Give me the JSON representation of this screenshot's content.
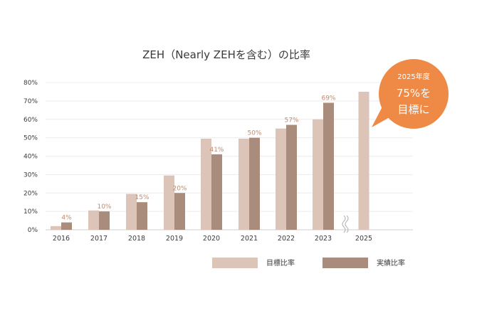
{
  "chart_data": {
    "type": "bar",
    "title": "ZEH（Nearly ZEHを含む）の比率",
    "categories": [
      "2016",
      "2017",
      "2018",
      "2019",
      "2020",
      "2021",
      "2022",
      "2023",
      "2025"
    ],
    "y_tick_labels": [
      "0%",
      "10%",
      "20%",
      "30%",
      "40%",
      "50%",
      "60%",
      "70%",
      "80%"
    ],
    "ylim": [
      0,
      80
    ],
    "unit": "%",
    "grid": true,
    "axis_break_between": [
      "2023",
      "2025"
    ],
    "legend_position": "bottom-right",
    "series": [
      {
        "name": "目標比率",
        "color": "#dcc5b8",
        "values": [
          2,
          10.5,
          19.5,
          29.5,
          49.5,
          49.5,
          55,
          60,
          75
        ]
      },
      {
        "name": "実績比率",
        "color": "#a98c7c",
        "values": [
          4,
          10,
          15,
          20,
          41,
          50,
          57,
          69,
          null
        ],
        "data_labels": [
          "4%",
          "10%",
          "15%",
          "20%",
          "41%",
          "50%",
          "57%",
          "69%",
          null
        ]
      }
    ],
    "callout": {
      "line1": "2025年度",
      "line2": "75%を",
      "line3": "目標に",
      "color": "#ee8a45"
    }
  }
}
